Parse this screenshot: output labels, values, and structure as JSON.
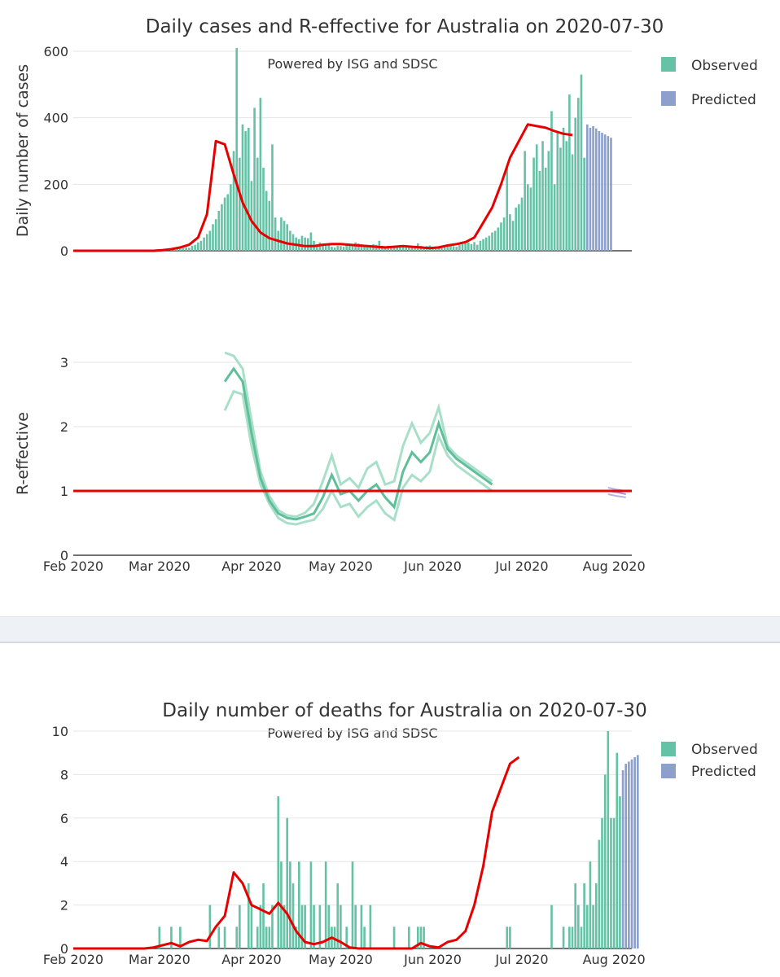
{
  "colors": {
    "observed": "#66c2a5",
    "predicted": "#8da0cb",
    "smooth": "#e60000",
    "r_band": "#a8dfc9",
    "r_mean": "#5fbf9a",
    "r_pred": "#b9b1e0",
    "grid": "#e5e5e5",
    "text": "#333333",
    "divider": "#eef1f5"
  },
  "xaxis": {
    "ticks": [
      "Feb 2020",
      "Mar 2020",
      "Apr 2020",
      "May 2020",
      "Jun 2020",
      "Jul 2020",
      "Aug 2020"
    ]
  },
  "chart_data": [
    {
      "id": "cases",
      "type": "bar",
      "title": "Daily cases and R-effective for Australia on 2020-07-30",
      "subtitle": "Powered by ISG and SDSC",
      "ylabel": "Daily number of cases",
      "ylim": [
        0,
        620
      ],
      "yticks": [
        0,
        200,
        400,
        600
      ],
      "legend": [
        "Observed",
        "Predicted"
      ],
      "legend_position": "top-right",
      "x_start": "2020-02-01",
      "x_end": "2020-08-07",
      "observed_start": "2020-03-01",
      "observed": [
        1,
        2,
        1,
        3,
        2,
        4,
        5,
        6,
        8,
        10,
        9,
        15,
        18,
        25,
        30,
        40,
        50,
        60,
        80,
        95,
        120,
        140,
        160,
        170,
        200,
        300,
        610,
        280,
        380,
        360,
        370,
        210,
        430,
        280,
        460,
        250,
        180,
        150,
        320,
        100,
        60,
        100,
        90,
        80,
        60,
        50,
        40,
        35,
        45,
        40,
        38,
        55,
        30,
        20,
        25,
        20,
        15,
        18,
        12,
        10,
        15,
        14,
        12,
        16,
        20,
        18,
        25,
        22,
        20,
        18,
        16,
        15,
        20,
        18,
        30,
        15,
        12,
        15,
        14,
        13,
        12,
        10,
        15,
        12,
        10,
        12,
        14,
        22,
        15,
        12,
        14,
        16,
        12,
        10,
        12,
        8,
        10,
        12,
        15,
        14,
        12,
        18,
        20,
        22,
        25,
        20,
        26,
        18,
        30,
        35,
        40,
        45,
        55,
        60,
        70,
        85,
        100,
        255,
        110,
        90,
        130,
        140,
        160,
        300,
        200,
        190,
        280,
        320,
        240,
        330,
        250,
        300,
        420,
        200,
        360,
        310,
        370,
        330,
        470,
        290,
        400,
        460,
        530,
        280
      ],
      "predicted_start": "2020-07-23",
      "predicted": [
        380,
        370,
        375,
        368,
        360,
        355,
        350,
        345,
        340
      ],
      "smooth_start": "2020-02-01",
      "smooth_step_days": 3,
      "smooth": [
        0,
        0,
        0,
        0,
        0,
        0,
        0,
        0,
        0,
        0,
        2,
        5,
        10,
        18,
        40,
        110,
        330,
        320,
        230,
        145,
        90,
        55,
        38,
        30,
        22,
        18,
        14,
        14,
        18,
        20,
        20,
        18,
        16,
        14,
        12,
        10,
        12,
        14,
        12,
        10,
        8,
        10,
        16,
        20,
        26,
        40,
        85,
        130,
        200,
        280,
        330,
        380,
        375,
        370,
        360,
        352,
        348
      ]
    },
    {
      "id": "reff",
      "type": "line",
      "title": "",
      "ylabel": "R-effective",
      "ylim": [
        0,
        3.2
      ],
      "yticks": [
        0,
        1,
        2,
        3
      ],
      "reference_line": 1,
      "r_start": "2020-03-23",
      "r_step_days": 3,
      "r_mean": [
        2.7,
        2.9,
        2.7,
        1.9,
        1.2,
        0.85,
        0.65,
        0.58,
        0.56,
        0.6,
        0.65,
        0.9,
        1.25,
        0.95,
        1.0,
        0.85,
        1.0,
        1.1,
        0.9,
        0.75,
        1.3,
        1.6,
        1.45,
        1.6,
        2.05,
        1.65,
        1.5,
        1.4,
        1.3,
        1.2,
        1.1
      ],
      "r_upper": [
        3.15,
        3.1,
        2.9,
        2.1,
        1.3,
        0.92,
        0.7,
        0.62,
        0.6,
        0.66,
        0.8,
        1.15,
        1.55,
        1.1,
        1.2,
        1.05,
        1.35,
        1.45,
        1.1,
        1.15,
        1.7,
        2.05,
        1.75,
        1.9,
        2.3,
        1.7,
        1.55,
        1.45,
        1.35,
        1.25,
        1.15
      ],
      "r_lower": [
        2.25,
        2.55,
        2.5,
        1.7,
        1.1,
        0.8,
        0.58,
        0.5,
        0.48,
        0.52,
        0.55,
        0.72,
        1.0,
        0.75,
        0.8,
        0.6,
        0.75,
        0.85,
        0.65,
        0.55,
        1.05,
        1.25,
        1.15,
        1.3,
        1.85,
        1.55,
        1.4,
        1.3,
        1.2,
        1.1,
        1.0
      ],
      "predicted_start": "2020-07-30",
      "predicted_mean": [
        1.0,
        0.98,
        0.95
      ],
      "predicted_upper": [
        1.05,
        1.02,
        1.0
      ],
      "predicted_lower": [
        0.95,
        0.92,
        0.9
      ]
    },
    {
      "id": "deaths",
      "type": "bar",
      "title": "Daily number of deaths for Australia on 2020-07-30",
      "subtitle": "Powered by ISG and SDSC",
      "ylim": [
        0,
        10.2
      ],
      "yticks": [
        0,
        2,
        4,
        6,
        8,
        10
      ],
      "legend": [
        "Observed",
        "Predicted"
      ],
      "legend_position": "top-right",
      "observed_bars": [
        [
          "2020-03-01",
          1
        ],
        [
          "2020-03-05",
          1
        ],
        [
          "2020-03-08",
          1
        ],
        [
          "2020-03-18",
          2
        ],
        [
          "2020-03-21",
          1
        ],
        [
          "2020-03-23",
          1
        ],
        [
          "2020-03-27",
          1
        ],
        [
          "2020-03-28",
          2
        ],
        [
          "2020-03-31",
          3
        ],
        [
          "2020-04-01",
          2
        ],
        [
          "2020-04-03",
          1
        ],
        [
          "2020-04-04",
          2
        ],
        [
          "2020-04-05",
          3
        ],
        [
          "2020-04-06",
          1
        ],
        [
          "2020-04-07",
          1
        ],
        [
          "2020-04-08",
          2
        ],
        [
          "2020-04-10",
          7
        ],
        [
          "2020-04-11",
          4
        ],
        [
          "2020-04-12",
          2
        ],
        [
          "2020-04-13",
          6
        ],
        [
          "2020-04-14",
          4
        ],
        [
          "2020-04-15",
          3
        ],
        [
          "2020-04-16",
          1
        ],
        [
          "2020-04-17",
          4
        ],
        [
          "2020-04-18",
          2
        ],
        [
          "2020-04-19",
          2
        ],
        [
          "2020-04-21",
          4
        ],
        [
          "2020-04-22",
          2
        ],
        [
          "2020-04-24",
          2
        ],
        [
          "2020-04-26",
          4
        ],
        [
          "2020-04-27",
          2
        ],
        [
          "2020-04-28",
          1
        ],
        [
          "2020-04-29",
          1
        ],
        [
          "2020-04-30",
          3
        ],
        [
          "2020-05-01",
          2
        ],
        [
          "2020-05-03",
          1
        ],
        [
          "2020-05-05",
          4
        ],
        [
          "2020-05-06",
          2
        ],
        [
          "2020-05-08",
          2
        ],
        [
          "2020-05-09",
          1
        ],
        [
          "2020-05-11",
          2
        ],
        [
          "2020-05-19",
          1
        ],
        [
          "2020-05-24",
          1
        ],
        [
          "2020-05-27",
          1
        ],
        [
          "2020-05-28",
          1
        ],
        [
          "2020-05-29",
          1
        ],
        [
          "2020-06-26",
          1
        ],
        [
          "2020-06-27",
          1
        ],
        [
          "2020-07-11",
          2
        ],
        [
          "2020-07-15",
          1
        ],
        [
          "2020-07-17",
          1
        ],
        [
          "2020-07-18",
          1
        ],
        [
          "2020-07-19",
          3
        ],
        [
          "2020-07-20",
          2
        ],
        [
          "2020-07-21",
          1
        ],
        [
          "2020-07-22",
          3
        ],
        [
          "2020-07-23",
          2
        ],
        [
          "2020-07-24",
          4
        ],
        [
          "2020-07-25",
          2
        ],
        [
          "2020-07-26",
          3
        ],
        [
          "2020-07-27",
          5
        ],
        [
          "2020-07-28",
          6
        ],
        [
          "2020-07-29",
          8
        ],
        [
          "2020-07-30",
          10
        ],
        [
          "2020-07-31",
          6
        ],
        [
          "2020-08-01",
          6
        ],
        [
          "2020-08-02",
          9
        ],
        [
          "2020-08-03",
          7
        ]
      ],
      "predicted_start": "2020-08-04",
      "predicted": [
        8.2,
        8.5,
        8.6,
        8.7,
        8.8,
        8.9
      ],
      "smooth_start": "2020-02-01",
      "smooth_step_days": 3,
      "smooth": [
        0,
        0,
        0,
        0,
        0,
        0,
        0,
        0,
        0,
        0.05,
        0.15,
        0.25,
        0.1,
        0.3,
        0.4,
        0.35,
        1.0,
        1.5,
        3.5,
        3.0,
        2.0,
        1.8,
        1.6,
        2.1,
        1.6,
        0.8,
        0.3,
        0.2,
        0.3,
        0.5,
        0.3,
        0.05,
        0,
        0,
        0,
        0,
        0,
        0,
        0,
        0.25,
        0.1,
        0.05,
        0.3,
        0.4,
        0.8,
        2.0,
        3.8,
        6.3,
        7.4,
        8.5,
        8.8
      ]
    }
  ]
}
